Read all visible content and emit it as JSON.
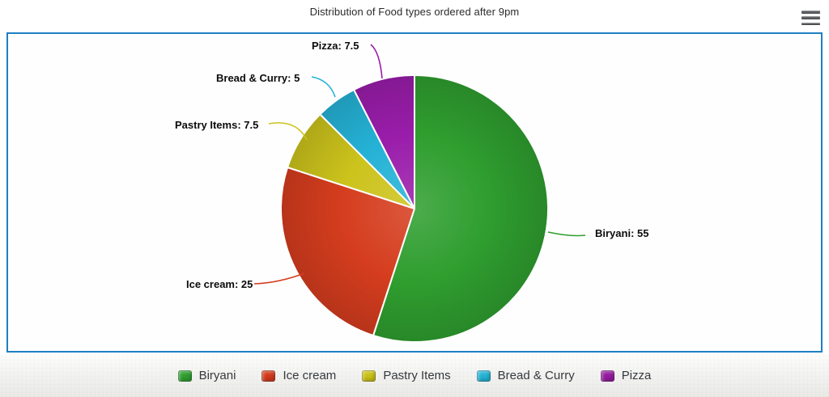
{
  "header": {
    "title": "Distribution of Food types ordered after 9pm"
  },
  "menu": {
    "icon": "hamburger-menu-icon"
  },
  "chart_data": {
    "type": "pie",
    "title": "Distribution of Food types ordered after 9pm",
    "start_angle_deg": 0,
    "direction": "clockwise",
    "data_labels_visible": true,
    "legend_position": "bottom",
    "series": [
      {
        "name": "Biryani",
        "value": 55,
        "color": "#2f9e2f"
      },
      {
        "name": "Ice cream",
        "value": 25,
        "color": "#d53d1e"
      },
      {
        "name": "Pastry Items",
        "value": 7.5,
        "color": "#ccc31c"
      },
      {
        "name": "Bread & Curry",
        "value": 5,
        "color": "#25b2d6"
      },
      {
        "name": "Pizza",
        "value": 7.5,
        "color": "#9a1daa"
      }
    ]
  },
  "data_labels": {
    "biryani": "Biryani: 55",
    "ice_cream": "Ice cream: 25",
    "pastry": "Pastry Items: 7.5",
    "bread_curry": "Bread & Curry: 5",
    "pizza": "Pizza: 7.5"
  },
  "legend": {
    "items": [
      {
        "label": "Biryani",
        "color": "#2f9e2f"
      },
      {
        "label": "Ice cream",
        "color": "#d2391c"
      },
      {
        "label": "Pastry Items",
        "color": "#c9c015"
      },
      {
        "label": "Bread & Curry",
        "color": "#23b2d4"
      },
      {
        "label": "Pizza",
        "color": "#931b9e"
      }
    ]
  },
  "colors": {
    "chart_border": "#1d80c3",
    "slice_border": "#ffffff"
  }
}
